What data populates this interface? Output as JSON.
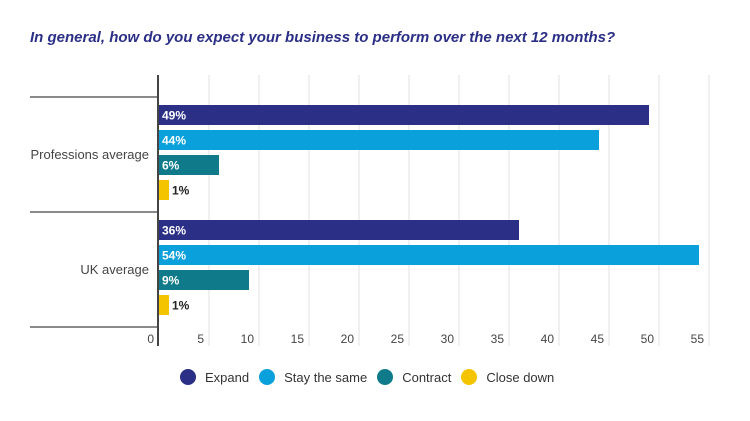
{
  "chart_data": {
    "type": "bar",
    "orientation": "horizontal",
    "title": "In general, how do you expect your business to perform over the next 12 months?",
    "categories": [
      "Professions average",
      "UK average"
    ],
    "series": [
      {
        "name": "Expand",
        "color": "#2b2f86",
        "values": [
          49,
          36
        ],
        "labels": [
          "49%",
          "36%"
        ]
      },
      {
        "name": "Stay the same",
        "color": "#0aa0dc",
        "values": [
          44,
          54
        ],
        "labels": [
          "44%",
          "54%"
        ]
      },
      {
        "name": "Contract",
        "color": "#0e7a8a",
        "values": [
          6,
          9
        ],
        "labels": [
          "6%",
          "9%"
        ]
      },
      {
        "name": "Close down",
        "color": "#f5c400",
        "values": [
          1,
          1
        ],
        "labels": [
          "1%",
          "1%"
        ]
      }
    ],
    "xlim": [
      0,
      55
    ],
    "xticks": [
      0,
      5,
      10,
      15,
      20,
      25,
      30,
      35,
      40,
      45,
      50,
      55
    ],
    "grid": true,
    "legend_position": "bottom"
  }
}
